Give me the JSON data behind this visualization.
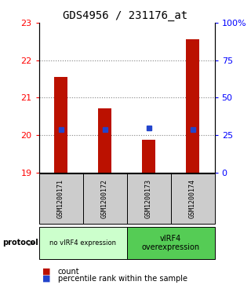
{
  "title": "GDS4956 / 231176_at",
  "samples": [
    "GSM1200171",
    "GSM1200172",
    "GSM1200173",
    "GSM1200174"
  ],
  "bar_bottoms": [
    19.0,
    19.0,
    19.0,
    19.0
  ],
  "bar_tops": [
    21.55,
    20.72,
    19.88,
    22.55
  ],
  "blue_markers": [
    20.15,
    20.15,
    20.18,
    20.15
  ],
  "bar_color": "#bb1100",
  "marker_color": "#2244cc",
  "ylim_left": [
    19,
    23
  ],
  "ylim_right": [
    0,
    100
  ],
  "yticks_left": [
    19,
    20,
    21,
    22,
    23
  ],
  "yticks_right": [
    0,
    25,
    50,
    75,
    100
  ],
  "ytick_labels_right": [
    "0",
    "25",
    "50",
    "75",
    "100%"
  ],
  "protocol_labels": [
    "no vIRF4 expression",
    "vIRF4\noverexpression"
  ],
  "protocol_colors": [
    "#ccffcc",
    "#55cc55"
  ],
  "group_bg_color": "#cccccc",
  "legend_items": [
    "count",
    "percentile rank within the sample"
  ],
  "legend_colors": [
    "#bb1100",
    "#2244cc"
  ]
}
